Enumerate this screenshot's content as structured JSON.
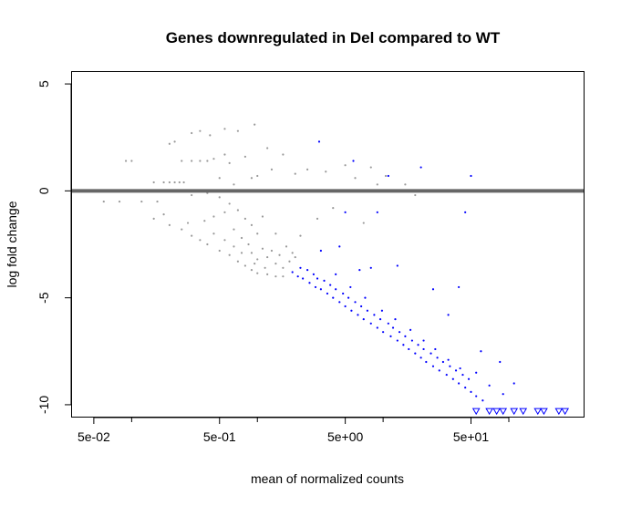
{
  "chart_data": {
    "type": "scatter",
    "title": "Genes downregulated in Del compared to WT",
    "xlabel": "mean of normalized counts",
    "ylabel": "log fold change",
    "x_scale": "log10",
    "xlim": [
      0.033,
      400
    ],
    "ylim": [
      -10.6,
      5.6
    ],
    "x_ticks": [
      0.05,
      0.5,
      5,
      50
    ],
    "x_tick_labels": [
      "5e-02",
      "5e-01",
      "5e+00",
      "5e+01"
    ],
    "x_minor_ticks": [
      0.1,
      1,
      10,
      100
    ],
    "y_ticks": [
      5,
      0,
      -5,
      -10
    ],
    "y_tick_labels": [
      "5",
      "0",
      "-5",
      "-10"
    ],
    "reference_line": {
      "y": 0,
      "color": "#666666"
    },
    "grid": false,
    "legend": "none",
    "colors": {
      "not_significant": "#999999",
      "significant": "#0000ff",
      "reference_line": "#666666"
    },
    "series": [
      {
        "status": "not_significant",
        "color": "#999999",
        "points": [
          [
            0.06,
            -0.5
          ],
          [
            0.08,
            -0.5
          ],
          [
            0.12,
            -0.5
          ],
          [
            0.16,
            -0.5
          ],
          [
            0.09,
            1.4
          ],
          [
            0.1,
            1.4
          ],
          [
            0.15,
            0.4
          ],
          [
            0.18,
            0.4
          ],
          [
            0.2,
            0.4
          ],
          [
            0.22,
            0.4
          ],
          [
            0.24,
            0.4
          ],
          [
            0.26,
            0.4
          ],
          [
            0.2,
            2.2
          ],
          [
            0.22,
            2.3
          ],
          [
            0.3,
            2.7
          ],
          [
            0.35,
            2.8
          ],
          [
            0.42,
            2.6
          ],
          [
            0.55,
            2.9
          ],
          [
            0.7,
            2.8
          ],
          [
            0.95,
            3.1
          ],
          [
            0.25,
            1.4
          ],
          [
            0.3,
            1.4
          ],
          [
            0.35,
            1.4
          ],
          [
            0.4,
            1.4
          ],
          [
            0.45,
            1.5
          ],
          [
            0.55,
            1.7
          ],
          [
            0.6,
            1.3
          ],
          [
            0.8,
            1.6
          ],
          [
            1.2,
            2.0
          ],
          [
            1.6,
            1.7
          ],
          [
            2.0,
            0.8
          ],
          [
            1.0,
            0.7
          ],
          [
            1.3,
            1.0
          ],
          [
            0.5,
            0.6
          ],
          [
            0.65,
            0.3
          ],
          [
            0.9,
            0.6
          ],
          [
            2.5,
            1.0
          ],
          [
            3.5,
            0.9
          ],
          [
            5.0,
            1.2
          ],
          [
            6.0,
            0.6
          ],
          [
            8.0,
            1.1
          ],
          [
            9.0,
            0.3
          ],
          [
            3.0,
            -1.3
          ],
          [
            4.0,
            -0.8
          ],
          [
            7.0,
            -1.5
          ],
          [
            10.5,
            0.7
          ],
          [
            15.0,
            0.3
          ],
          [
            18.0,
            -0.2
          ],
          [
            0.3,
            -0.2
          ],
          [
            0.4,
            -0.1
          ],
          [
            0.5,
            -0.3
          ],
          [
            0.6,
            -0.6
          ],
          [
            0.7,
            -0.9
          ],
          [
            0.8,
            -1.3
          ],
          [
            0.9,
            -1.6
          ],
          [
            1.0,
            -2.0
          ],
          [
            0.55,
            -1.0
          ],
          [
            0.45,
            -1.2
          ],
          [
            0.38,
            -1.4
          ],
          [
            0.65,
            -1.8
          ],
          [
            0.75,
            -2.2
          ],
          [
            0.85,
            -2.5
          ],
          [
            1.1,
            -2.7
          ],
          [
            1.2,
            -3.1
          ],
          [
            1.4,
            -3.4
          ],
          [
            1.6,
            -3.6
          ],
          [
            0.9,
            -2.9
          ],
          [
            1.0,
            -3.2
          ],
          [
            1.3,
            -2.8
          ],
          [
            1.5,
            -3.0
          ],
          [
            1.8,
            -3.3
          ],
          [
            1.7,
            -2.6
          ],
          [
            1.9,
            -2.9
          ],
          [
            2.0,
            -3.1
          ],
          [
            1.1,
            -1.2
          ],
          [
            1.4,
            -2.0
          ],
          [
            2.2,
            -2.1
          ],
          [
            0.15,
            -1.3
          ],
          [
            0.2,
            -1.6
          ],
          [
            0.25,
            -1.8
          ],
          [
            0.3,
            -2.1
          ],
          [
            0.35,
            -2.3
          ],
          [
            0.4,
            -2.5
          ],
          [
            0.5,
            -2.8
          ],
          [
            0.6,
            -3.0
          ],
          [
            0.7,
            -3.3
          ],
          [
            0.8,
            -3.5
          ],
          [
            0.9,
            -3.7
          ],
          [
            1.0,
            -3.85
          ],
          [
            1.2,
            -3.9
          ],
          [
            1.4,
            -4.0
          ],
          [
            1.6,
            -4.0
          ],
          [
            0.18,
            -1.1
          ],
          [
            0.28,
            -1.5
          ],
          [
            0.45,
            -2.0
          ],
          [
            0.55,
            -2.3
          ],
          [
            0.65,
            -2.6
          ],
          [
            0.75,
            -2.9
          ],
          [
            0.95,
            -3.4
          ],
          [
            1.15,
            -3.6
          ]
        ]
      },
      {
        "status": "significant",
        "color": "#0000ff",
        "points": [
          [
            1.9,
            -3.8
          ],
          [
            2.1,
            -4.0
          ],
          [
            2.3,
            -4.1
          ],
          [
            2.6,
            -4.3
          ],
          [
            2.9,
            -4.5
          ],
          [
            3.2,
            -4.6
          ],
          [
            3.6,
            -4.8
          ],
          [
            4.0,
            -5.0
          ],
          [
            4.5,
            -5.2
          ],
          [
            5.0,
            -5.4
          ],
          [
            5.6,
            -5.6
          ],
          [
            6.3,
            -5.8
          ],
          [
            7.0,
            -6.0
          ],
          [
            8.0,
            -6.2
          ],
          [
            9.0,
            -6.4
          ],
          [
            10.0,
            -6.6
          ],
          [
            11.5,
            -6.8
          ],
          [
            13.0,
            -7.0
          ],
          [
            14.5,
            -7.2
          ],
          [
            16.0,
            -7.4
          ],
          [
            18.0,
            -7.6
          ],
          [
            20.0,
            -7.8
          ],
          [
            22.0,
            -8.0
          ],
          [
            25.0,
            -8.2
          ],
          [
            28.0,
            -8.4
          ],
          [
            32.0,
            -8.6
          ],
          [
            36.0,
            -8.8
          ],
          [
            40.0,
            -9.0
          ],
          [
            45.0,
            -9.2
          ],
          [
            50.0,
            -9.4
          ],
          [
            55.0,
            -9.6
          ],
          [
            62.0,
            -9.8
          ],
          [
            2.2,
            -3.6
          ],
          [
            2.5,
            -3.7
          ],
          [
            2.8,
            -3.9
          ],
          [
            3.0,
            -4.1
          ],
          [
            3.4,
            -4.2
          ],
          [
            3.8,
            -4.4
          ],
          [
            4.2,
            -4.6
          ],
          [
            4.8,
            -4.8
          ],
          [
            5.3,
            -5.0
          ],
          [
            6.0,
            -5.2
          ],
          [
            6.7,
            -5.4
          ],
          [
            7.5,
            -5.6
          ],
          [
            8.5,
            -5.8
          ],
          [
            9.5,
            -6.0
          ],
          [
            11.0,
            -6.2
          ],
          [
            12.0,
            -6.4
          ],
          [
            13.5,
            -6.6
          ],
          [
            15.0,
            -6.8
          ],
          [
            17.0,
            -7.0
          ],
          [
            19.0,
            -7.2
          ],
          [
            21.0,
            -7.4
          ],
          [
            24.0,
            -7.6
          ],
          [
            27.0,
            -7.8
          ],
          [
            30.0,
            -8.0
          ],
          [
            34.0,
            -8.2
          ],
          [
            38.0,
            -8.4
          ],
          [
            43.0,
            -8.6
          ],
          [
            48.0,
            -8.8
          ],
          [
            4.2,
            -3.9
          ],
          [
            5.5,
            -4.5
          ],
          [
            7.2,
            -5.0
          ],
          [
            9.8,
            -5.6
          ],
          [
            12.5,
            -6.0
          ],
          [
            16.5,
            -6.5
          ],
          [
            21.0,
            -7.0
          ],
          [
            26.0,
            -7.4
          ],
          [
            33.0,
            -7.9
          ],
          [
            41.0,
            -8.3
          ],
          [
            55.0,
            -8.5
          ],
          [
            70.0,
            -9.1
          ],
          [
            4.5,
            -2.6
          ],
          [
            3.2,
            -2.8
          ],
          [
            6.5,
            -3.7
          ],
          [
            13.0,
            -3.5
          ],
          [
            25.0,
            -4.6
          ],
          [
            40.0,
            -4.5
          ],
          [
            33.0,
            -5.8
          ],
          [
            60.0,
            -7.5
          ],
          [
            85.0,
            -8.0
          ],
          [
            110.0,
            -9.0
          ],
          [
            90.0,
            -9.5
          ],
          [
            3.1,
            2.3
          ],
          [
            5.8,
            1.4
          ],
          [
            11.0,
            0.7
          ],
          [
            20.0,
            1.1
          ],
          [
            50.0,
            0.7
          ],
          [
            5.0,
            -1.0
          ],
          [
            9.0,
            -1.0
          ],
          [
            45.0,
            -1.0
          ],
          [
            8.0,
            -3.6
          ]
        ]
      },
      {
        "status": "significant_out_of_range",
        "marker": "triangle-down",
        "color": "#0000ff",
        "points": [
          [
            70.0,
            -10.3
          ],
          [
            80.0,
            -10.3
          ],
          [
            90.0,
            -10.3
          ],
          [
            110.0,
            -10.3
          ],
          [
            130.0,
            -10.3
          ],
          [
            170.0,
            -10.3
          ],
          [
            190.0,
            -10.3
          ],
          [
            250.0,
            -10.3
          ],
          [
            280.0,
            -10.3
          ],
          [
            55.0,
            -10.3
          ]
        ]
      }
    ]
  }
}
